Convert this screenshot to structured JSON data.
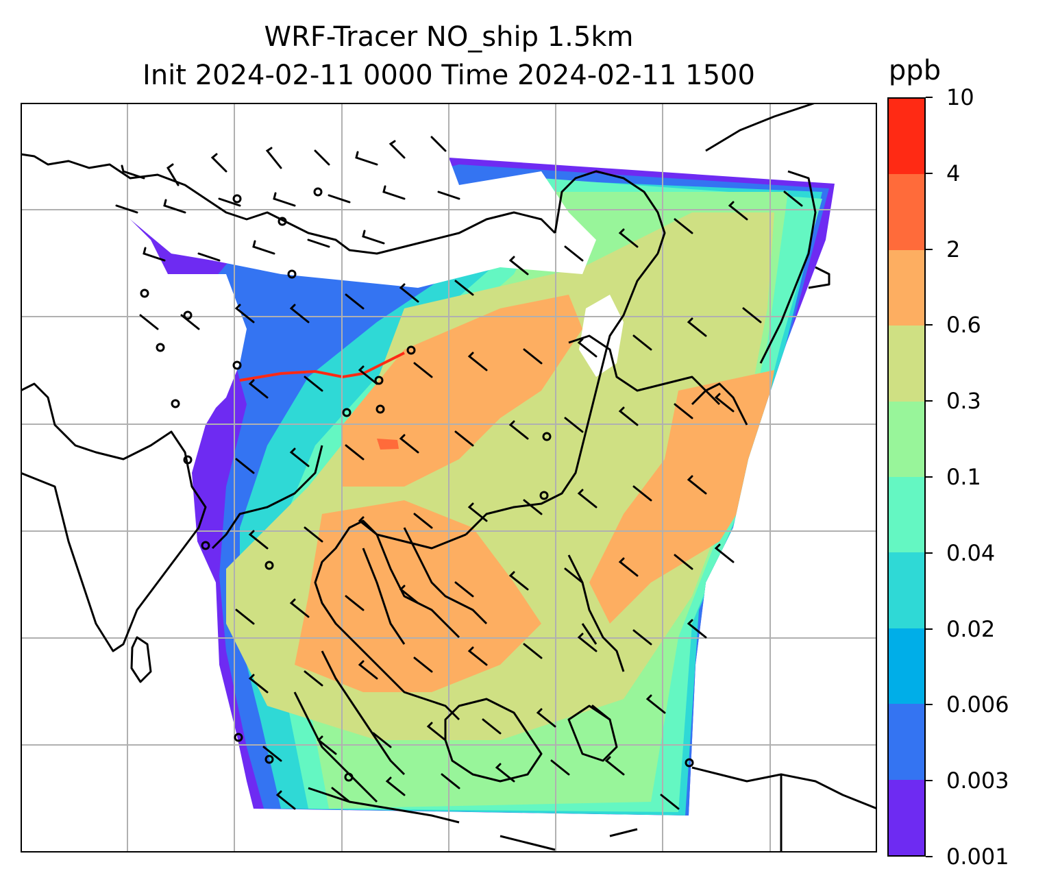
{
  "title_line1": "WRF-Tracer NO_ship 1.5km",
  "title_line2": "Init 2024-02-11 0000 Time 2024-02-11 1500",
  "colorbar": {
    "unit": "ppb",
    "levels": [
      "10",
      "4",
      "2",
      "0.6",
      "0.3",
      "0.1",
      "0.04",
      "0.02",
      "0.006",
      "0.003",
      "0.001"
    ],
    "colors": [
      "#ff2a14",
      "#ff6b3a",
      "#fdae61",
      "#cfe083",
      "#98f59a",
      "#64f7c2",
      "#2fd9d6",
      "#00aee8",
      "#3474f2",
      "#6e2bf2"
    ]
  },
  "map": {
    "gridlines": true,
    "wind_barbs": true,
    "coastline_color": "#000000",
    "grid_color": "#b0b0b0"
  }
}
